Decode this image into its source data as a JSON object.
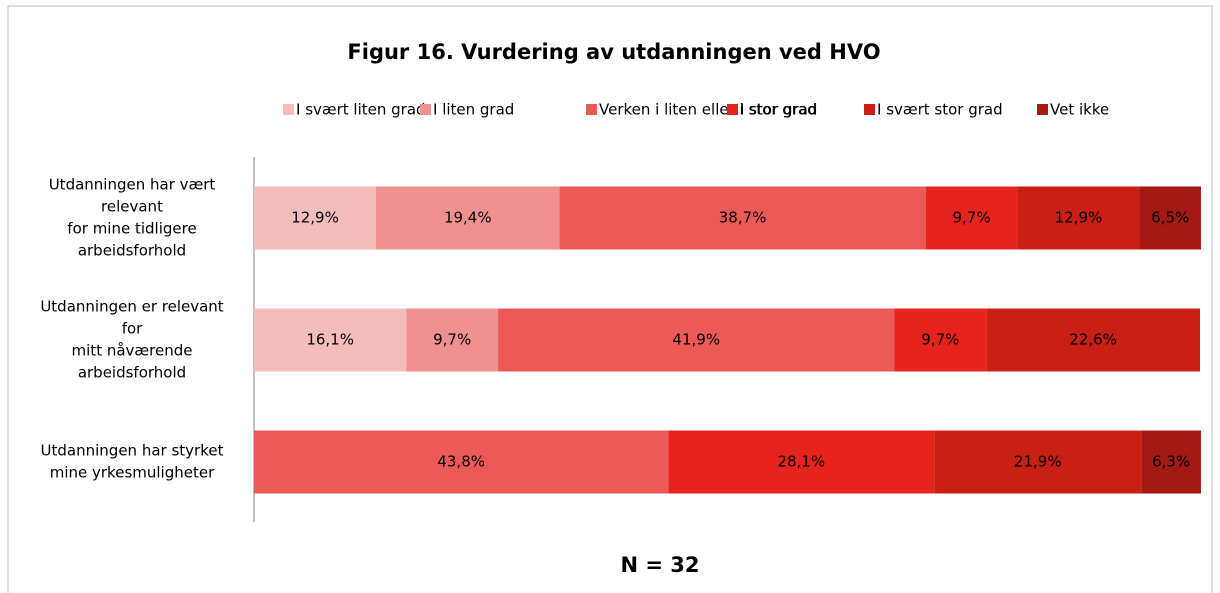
{
  "chart_data": {
    "type": "stacked-bar-horizontal",
    "title": "Figur 16. Vurdering av utdanningen ved HVO",
    "note": "N = 32",
    "categories": [
      [
        "Utdanningen har vært",
        "relevant",
        "for mine tidligere",
        "arbeidsforhold"
      ],
      [
        "Utdanningen er relevant",
        "for",
        "mitt nåværende",
        "arbeidsforhold"
      ],
      [
        "Utdanningen har styrket",
        "mine yrkesmuligheter"
      ]
    ],
    "xlim": [
      0,
      100
    ],
    "series": [
      {
        "name": "I svært liten grad",
        "color": "#f5bcbc",
        "values": [
          12.9,
          16.1,
          0
        ],
        "value_labels": [
          "12,9%",
          "16,1%",
          null
        ]
      },
      {
        "name": "I liten grad",
        "color": "#ef9191",
        "values": [
          19.4,
          9.7,
          0
        ],
        "value_labels": [
          "19,4%",
          "9,7%",
          null
        ]
      },
      {
        "name": "Verken i liten eller i stor grad",
        "color": "#eb5a56",
        "values": [
          38.7,
          41.9,
          43.8
        ],
        "value_labels": [
          "38,7%",
          "41,9%",
          "43,8%"
        ]
      },
      {
        "name": "I stor grad",
        "color": "#e6231c",
        "values": [
          9.7,
          9.7,
          28.1
        ],
        "value_labels": [
          "9,7%",
          "9,7%",
          "28,1%"
        ]
      },
      {
        "name": "I svært stor grad",
        "color": "#c91f15",
        "values": [
          12.9,
          22.6,
          21.9
        ],
        "value_labels": [
          "12,9%",
          "22,6%",
          "21,9%"
        ]
      },
      {
        "name": "Vet ikke",
        "color": "#a31a14",
        "values": [
          6.5,
          0,
          6.3
        ],
        "value_labels": [
          "6,5%",
          null,
          "6,3%"
        ]
      }
    ]
  }
}
